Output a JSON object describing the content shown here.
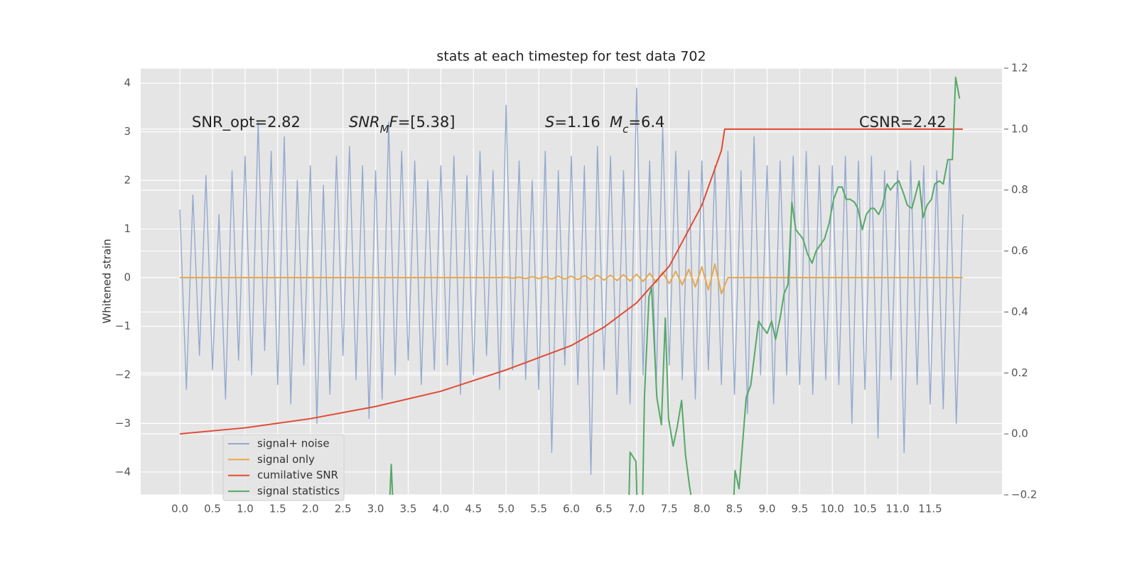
{
  "chart_data": {
    "type": "line",
    "title": "stats at each timestep for test data 702",
    "y_label": "Whitened strain",
    "grid": true,
    "legend": "lower left",
    "xlim": [
      -0.6,
      12.6
    ],
    "ylim": [
      -4.47,
      4.31
    ],
    "y2lim": [
      -0.2,
      1.2
    ],
    "xticks": [
      {
        "value": 0,
        "label": "0.0"
      },
      0.5,
      {
        "value": 1,
        "label": "1.0"
      },
      1.5,
      {
        "value": 2,
        "label": "2.0"
      },
      2.5,
      {
        "value": 3,
        "label": "3.0"
      },
      3.5,
      {
        "value": 4,
        "label": "4.0"
      },
      4.5,
      {
        "value": 5,
        "label": "5.0"
      },
      5.5,
      {
        "value": 6,
        "label": "6.0"
      },
      6.5,
      {
        "value": 7,
        "label": "7.0"
      },
      7.5,
      {
        "value": 8,
        "label": "8.0"
      },
      8.5,
      {
        "value": 9,
        "label": "9.0"
      },
      9.5,
      {
        "value": 10,
        "label": "10.0"
      },
      10.5,
      {
        "value": 11,
        "label": "11.0"
      },
      11.5
    ],
    "yticks": [
      {
        "value": -4,
        "label": "−4"
      },
      {
        "value": -3,
        "label": "−3"
      },
      {
        "value": -2,
        "label": "−2"
      },
      {
        "value": -1,
        "label": "−1"
      },
      0,
      1,
      2,
      3,
      4
    ],
    "y2ticks": [
      {
        "value": -0.2,
        "label": "−0.2"
      },
      {
        "value": 0,
        "label": "0.0"
      },
      0.2,
      0.4,
      0.6,
      0.8,
      {
        "value": 1,
        "label": "1.0"
      },
      1.2
    ],
    "annotations": [
      "SNR_opt=2.82",
      [
        {
          "text": "SNR",
          "italic": true
        },
        {
          "text": "M",
          "italic": true,
          "sub": true
        },
        {
          "text": "F",
          "italic": true
        },
        {
          "text": "=[5.38]"
        }
      ],
      [
        {
          "text": "S",
          "italic": true
        },
        {
          "text": "=1.16"
        }
      ],
      [
        {
          "text": "M",
          "italic": true
        },
        {
          "text": "c",
          "italic": true,
          "sub": true
        },
        {
          "text": "=6.4"
        }
      ],
      "CSNR=2.42"
    ],
    "x": [
      0,
      0.1,
      0.2,
      0.3,
      0.4,
      0.5,
      0.6,
      0.7,
      0.8,
      0.9,
      1,
      1.1,
      1.2,
      1.3,
      1.4,
      1.5,
      1.6,
      1.7,
      1.8,
      1.9,
      2,
      2.1,
      2.2,
      2.3,
      2.4,
      2.5,
      2.6,
      2.7,
      2.8,
      2.9,
      3,
      3.1,
      3.2,
      3.3,
      3.4,
      3.5,
      3.6,
      3.7,
      3.8,
      3.9,
      4,
      4.1,
      4.2,
      4.3,
      4.4,
      4.5,
      4.6,
      4.7,
      4.8,
      4.9,
      5,
      5.1,
      5.2,
      5.3,
      5.4,
      5.5,
      5.6,
      5.7,
      5.8,
      5.9,
      6,
      6.1,
      6.2,
      6.3,
      6.4,
      6.5,
      6.6,
      6.7,
      6.8,
      6.9,
      7,
      7.1,
      7.2,
      7.3,
      7.4,
      7.5,
      7.6,
      7.7,
      7.8,
      7.9,
      8,
      8.1,
      8.2,
      8.3,
      8.4,
      8.5,
      8.6,
      8.7,
      8.8,
      8.9,
      9,
      9.1,
      9.2,
      9.3,
      9.4,
      9.5,
      9.6,
      9.7,
      9.8,
      9.9,
      10,
      10.1,
      10.2,
      10.3,
      10.4,
      10.5,
      10.6,
      10.7,
      10.8,
      10.9,
      11,
      11.1,
      11.2,
      11.3,
      11.4,
      11.5,
      11.6,
      11.7,
      11.8,
      11.9,
      12
    ],
    "series": [
      {
        "name": "signal+ noise",
        "color": "#94a9cf",
        "values": [
          1.4,
          -2.3,
          1.7,
          -1.6,
          2.1,
          -1.9,
          1.3,
          -2.5,
          2.2,
          -1.7,
          2.5,
          -2.0,
          3.2,
          -1.5,
          2.6,
          -2.2,
          2.9,
          -2.6,
          2.0,
          -1.8,
          2.3,
          -3.0,
          1.9,
          -2.4,
          2.5,
          -1.6,
          2.7,
          -2.1,
          2.3,
          -2.9,
          2.2,
          -2.5,
          3.2,
          -2.0,
          2.6,
          -1.7,
          2.4,
          -2.2,
          2.0,
          -1.9,
          2.3,
          -1.8,
          2.5,
          -2.4,
          2.1,
          -2.0,
          2.6,
          -1.6,
          2.2,
          -2.3,
          3.55,
          -1.9,
          2.4,
          -2.1,
          2.0,
          -2.3,
          2.6,
          -3.6,
          2.2,
          -1.8,
          2.5,
          -2.2,
          2.3,
          -4.05,
          2.7,
          -1.9,
          2.5,
          -2.4,
          2.2,
          -2.6,
          3.9,
          -2.0,
          2.4,
          -2.3,
          3.1,
          -1.8,
          2.6,
          -2.1,
          2.2,
          -2.5,
          2.4,
          -1.9,
          2.3,
          -2.2,
          2.6,
          -2.4,
          2.2,
          -2.8,
          2.9,
          -2.0,
          2.3,
          -2.6,
          2.4,
          -2.0,
          2.5,
          -2.2,
          2.6,
          -2.4,
          2.3,
          -2.1,
          2.3,
          -2.2,
          2.5,
          -3.0,
          2.4,
          -2.3,
          2.5,
          -3.3,
          2.2,
          -2.1,
          2.2,
          -3.6,
          2.4,
          -2.2,
          2.3,
          -2.6,
          2.2,
          -2.7,
          2.4,
          -3.0,
          1.3
        ]
      },
      {
        "name": "signal only",
        "color": "#e5a84f",
        "values": [
          0,
          0,
          0,
          0,
          0,
          0,
          0,
          0,
          0,
          0,
          0,
          0,
          0,
          0,
          0,
          0,
          0,
          0,
          0,
          0,
          0,
          0,
          0,
          0,
          0,
          0,
          0,
          0,
          0,
          0,
          0,
          0,
          0,
          0,
          0,
          0,
          0,
          0,
          0,
          0,
          0,
          0,
          0,
          0,
          0,
          0,
          0,
          0,
          0,
          0,
          0.01,
          -0.01,
          0.01,
          -0.02,
          0.02,
          -0.02,
          0.02,
          -0.03,
          0.03,
          -0.03,
          0.03,
          -0.04,
          0.04,
          -0.04,
          0.05,
          -0.05,
          0.05,
          -0.06,
          0.06,
          -0.07,
          0.07,
          -0.08,
          0.09,
          -0.1,
          0.11,
          -0.12,
          0.13,
          -0.15,
          0.17,
          -0.19,
          0.22,
          -0.25,
          0.28,
          -0.33,
          0,
          0,
          0,
          0,
          0,
          0,
          0,
          0,
          0,
          0,
          0,
          0,
          0,
          0,
          0,
          0,
          0,
          0,
          0,
          0,
          0,
          0,
          0,
          0,
          0,
          0,
          0,
          0,
          0,
          0,
          0,
          0,
          0,
          0,
          0,
          0,
          0
        ]
      },
      {
        "name": "cumilative SNR",
        "color": "#e24a33",
        "axis": "y2",
        "x": [
          0,
          1,
          2,
          3,
          4,
          5,
          6,
          6.5,
          7,
          7.5,
          8,
          8.3,
          8.35,
          12
        ],
        "values": [
          0,
          0.02,
          0.05,
          0.09,
          0.14,
          0.21,
          0.29,
          0.35,
          0.43,
          0.55,
          0.75,
          0.93,
          1.0,
          1.0
        ]
      },
      {
        "name": "signal statistics",
        "color": "#55a868",
        "axis": "y2",
        "x": [
          3.21,
          3.24,
          3.27,
          5,
          6.88,
          6.9,
          6.99,
          7.01,
          7.09,
          7.12,
          7.19,
          7.23,
          7.31,
          7.38,
          7.44,
          7.49,
          7.56,
          7.62,
          7.69,
          7.75,
          7.81,
          7.87,
          8,
          8.48,
          8.51,
          8.57,
          8.68,
          8.75,
          8.87,
          8.93,
          9.0,
          9.07,
          9.13,
          9.2,
          9.26,
          9.32,
          9.38,
          9.44,
          9.55,
          9.62,
          9.69,
          9.75,
          9.88,
          9.95,
          10.02,
          10.09,
          10.15,
          10.21,
          10.27,
          10.34,
          10.39,
          10.46,
          10.52,
          10.59,
          10.64,
          10.71,
          10.77,
          10.84,
          10.89,
          10.96,
          11.02,
          11.09,
          11.15,
          11.22,
          11.27,
          11.33,
          11.39,
          11.45,
          11.52,
          11.57,
          11.64,
          11.7,
          11.77,
          11.84,
          11.89,
          11.95
        ],
        "values": [
          -0.25,
          -0.1,
          -0.25,
          null,
          -0.25,
          -0.06,
          -0.09,
          -0.25,
          -0.25,
          0.12,
          0.45,
          0.48,
          0.12,
          0.03,
          0.38,
          0.05,
          -0.04,
          0.02,
          0.11,
          -0.07,
          -0.17,
          -0.25,
          null,
          -0.25,
          -0.12,
          -0.18,
          0.12,
          0.16,
          0.37,
          0.35,
          0.33,
          0.37,
          0.31,
          0.38,
          0.46,
          0.49,
          0.76,
          0.67,
          0.64,
          0.59,
          0.56,
          0.6,
          0.64,
          0.69,
          0.77,
          0.81,
          0.81,
          0.77,
          0.77,
          0.76,
          0.74,
          0.67,
          0.72,
          0.74,
          0.74,
          0.72,
          0.75,
          0.82,
          0.8,
          0.82,
          0.83,
          0.79,
          0.75,
          0.74,
          0.78,
          0.83,
          0.71,
          0.75,
          0.77,
          0.82,
          0.83,
          0.82,
          0.9,
          0.9,
          1.17,
          1.1
        ]
      }
    ]
  }
}
